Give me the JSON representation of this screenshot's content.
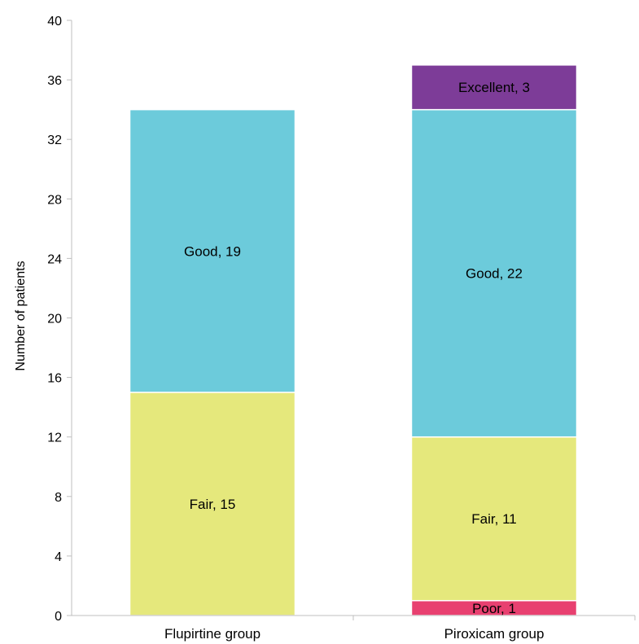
{
  "chart_data": {
    "type": "bar",
    "stacked": true,
    "ylabel": "Number of patients",
    "xlabel": "",
    "ylim": [
      0,
      40
    ],
    "yticks": [
      0,
      4,
      8,
      12,
      16,
      20,
      24,
      28,
      32,
      36,
      40
    ],
    "grid": false,
    "categories": [
      "Flupirtine group",
      "Piroxicam group"
    ],
    "series": [
      {
        "key": "poor",
        "color": "#e84070",
        "values": [
          0,
          1
        ],
        "labels": [
          "",
          "Poor, 1"
        ]
      },
      {
        "key": "fair",
        "color": "#e5e87c",
        "values": [
          15,
          11
        ],
        "labels": [
          "Fair, 15",
          "Fair, 11"
        ]
      },
      {
        "key": "good",
        "color": "#6ccbdb",
        "values": [
          19,
          22
        ],
        "labels": [
          "Good, 19",
          "Good, 22"
        ]
      },
      {
        "key": "excellent",
        "color": "#7d3c98",
        "values": [
          0,
          3
        ],
        "labels": [
          "",
          "Excellent, 3"
        ]
      }
    ]
  }
}
